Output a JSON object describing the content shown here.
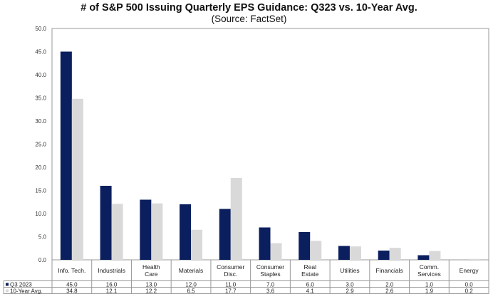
{
  "chart_data": {
    "type": "bar",
    "title": "# of S&P 500 Issuing Quarterly  EPS Guidance: Q323 vs. 10-Year Avg.",
    "subtitle": "(Source: FactSet)",
    "categories": [
      [
        "Info. Tech."
      ],
      [
        "Industrials"
      ],
      [
        "Health",
        "Care"
      ],
      [
        "Materials"
      ],
      [
        "Consumer",
        "Disc."
      ],
      [
        "Consumer",
        "Staples"
      ],
      [
        "Real",
        "Estate"
      ],
      [
        "Utilities"
      ],
      [
        "Financials"
      ],
      [
        "Comm.",
        "Services"
      ],
      [
        "Energy"
      ]
    ],
    "series": [
      {
        "name": "Q3 2023",
        "color": "#0b1f5e",
        "values": [
          45.0,
          16.0,
          13.0,
          12.0,
          11.0,
          7.0,
          6.0,
          3.0,
          2.0,
          1.0,
          0.0
        ]
      },
      {
        "name": "10-Year Avg.",
        "color": "#d9d9d9",
        "values": [
          34.8,
          12.1,
          12.2,
          6.5,
          17.7,
          3.6,
          4.1,
          2.9,
          2.6,
          1.9,
          0.2
        ]
      }
    ],
    "ylim": [
      0,
      50
    ],
    "yticks": [
      "0.0",
      "5.0",
      "10.0",
      "15.0",
      "20.0",
      "25.0",
      "30.0",
      "35.0",
      "40.0",
      "45.0",
      "50.0"
    ],
    "grid": false,
    "legend": "data-table"
  }
}
